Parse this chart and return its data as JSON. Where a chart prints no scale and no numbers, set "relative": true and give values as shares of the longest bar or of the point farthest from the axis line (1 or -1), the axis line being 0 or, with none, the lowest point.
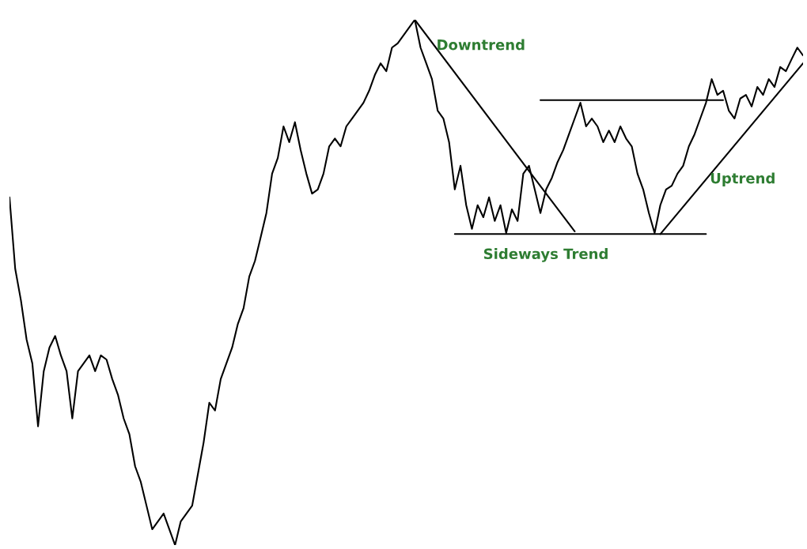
{
  "chart_data": {
    "type": "line",
    "relative": true,
    "legend": false,
    "marker": "none",
    "line_style": "solid",
    "categories": [
      null,
      null,
      null,
      null,
      null,
      null,
      null,
      null,
      null,
      null,
      null,
      null,
      null,
      null,
      null,
      null,
      null,
      null,
      null,
      null,
      null,
      null,
      null,
      null,
      null,
      null,
      null,
      null,
      null,
      null,
      null,
      null,
      null,
      null,
      null,
      null,
      null,
      null,
      null,
      null,
      null,
      null,
      null,
      null,
      null,
      null,
      null,
      null,
      null,
      null,
      null,
      null,
      null,
      null,
      null,
      null,
      null,
      null,
      null,
      null,
      null,
      null,
      null,
      null,
      null,
      null,
      null,
      null,
      null,
      null,
      null,
      null,
      null,
      null,
      null,
      null,
      null,
      null,
      null,
      null,
      null,
      null,
      null,
      null,
      null,
      null,
      null,
      null,
      null,
      null,
      null,
      null,
      null,
      null,
      null,
      null,
      null,
      null,
      null,
      null,
      null,
      null,
      null,
      null,
      null,
      null,
      null,
      null,
      null,
      null,
      null,
      null,
      null,
      null,
      null,
      null,
      null,
      null,
      null,
      null,
      null,
      null,
      null,
      null,
      null,
      null,
      null,
      null,
      null,
      null,
      null,
      null,
      null,
      null,
      null,
      null,
      null,
      null,
      null,
      null
    ],
    "series": [
      {
        "color": "#000000",
        "values": [
          0.662,
          0.526,
          0.466,
          0.391,
          0.346,
          0.226,
          0.331,
          0.376,
          0.398,
          0.361,
          0.331,
          0.241,
          0.331,
          0.346,
          0.361,
          0.331,
          0.361,
          0.353,
          0.316,
          0.286,
          0.241,
          0.211,
          0.15,
          0.12,
          0.075,
          0.03,
          0.045,
          0.06,
          0.03,
          0,
          0.045,
          0.06,
          0.075,
          0.135,
          0.195,
          0.271,
          0.256,
          0.316,
          0.346,
          0.376,
          0.421,
          0.451,
          0.511,
          0.541,
          0.586,
          0.632,
          0.707,
          0.737,
          0.797,
          0.767,
          0.805,
          0.752,
          0.707,
          0.669,
          0.677,
          0.707,
          0.759,
          0.774,
          0.759,
          0.797,
          0.812,
          0.827,
          0.842,
          0.865,
          0.895,
          0.917,
          0.902,
          0.947,
          0.955,
          0.97,
          0.985,
          1,
          0.947,
          0.917,
          0.887,
          0.827,
          0.812,
          0.767,
          0.677,
          0.722,
          0.647,
          0.602,
          0.647,
          0.624,
          0.662,
          0.617,
          0.647,
          0.594,
          0.639,
          0.617,
          0.707,
          0.722,
          0.677,
          0.632,
          0.677,
          0.699,
          0.729,
          0.752,
          0.782,
          0.812,
          0.842,
          0.797,
          0.812,
          0.797,
          0.767,
          0.789,
          0.767,
          0.797,
          0.774,
          0.759,
          0.707,
          0.677,
          0.632,
          0.594,
          0.647,
          0.677,
          0.684,
          0.707,
          0.722,
          0.759,
          0.782,
          0.812,
          0.842,
          0.887,
          0.857,
          0.865,
          0.827,
          0.812,
          0.85,
          0.857,
          0.835,
          0.872,
          0.857,
          0.887,
          0.872,
          0.91,
          0.902,
          0.925,
          0.947,
          0.932
        ]
      },
      {
        "color": "#000000",
        "values": [
          null,
          null,
          null,
          null,
          null,
          null,
          null,
          null,
          null,
          null,
          null,
          null,
          null,
          null,
          null,
          null,
          null,
          null,
          null,
          null,
          null,
          null,
          null,
          null,
          null,
          null,
          null,
          null,
          null,
          null,
          null,
          null,
          null,
          null,
          null,
          null,
          null,
          null,
          null,
          null,
          null,
          null,
          null,
          null,
          null,
          null,
          null,
          null,
          null,
          null,
          null,
          null,
          null,
          null,
          null,
          null,
          null,
          null,
          null,
          null,
          null,
          null,
          null,
          null,
          null,
          null,
          null,
          null,
          null,
          null,
          null,
          1,
          null,
          null,
          null,
          null,
          null,
          null,
          null,
          null,
          null,
          null,
          null,
          null,
          null,
          null,
          null,
          null,
          null,
          null,
          null,
          null,
          null,
          null,
          null,
          null,
          null,
          null,
          null,
          0.597,
          null,
          null,
          null,
          null,
          null,
          null,
          null,
          null,
          null,
          null,
          null,
          null,
          null,
          null,
          null,
          null,
          null,
          null,
          null,
          null,
          null,
          null,
          null,
          null,
          null,
          null,
          null,
          null,
          null,
          null,
          null,
          null,
          null,
          null,
          null,
          null,
          null,
          null,
          null,
          null
        ]
      },
      {
        "color": "#000000",
        "values": [
          null,
          null,
          null,
          null,
          null,
          null,
          null,
          null,
          null,
          null,
          null,
          null,
          null,
          null,
          null,
          null,
          null,
          null,
          null,
          null,
          null,
          null,
          null,
          null,
          null,
          null,
          null,
          null,
          null,
          null,
          null,
          null,
          null,
          null,
          null,
          null,
          null,
          null,
          null,
          null,
          null,
          null,
          null,
          null,
          null,
          null,
          null,
          null,
          null,
          null,
          null,
          null,
          null,
          null,
          null,
          null,
          null,
          null,
          null,
          null,
          null,
          null,
          null,
          null,
          null,
          null,
          null,
          null,
          null,
          null,
          null,
          null,
          null,
          null,
          null,
          null,
          null,
          null,
          0.592,
          null,
          null,
          null,
          null,
          null,
          null,
          null,
          null,
          null,
          null,
          null,
          null,
          null,
          null,
          null,
          null,
          null,
          null,
          null,
          null,
          null,
          null,
          null,
          null,
          null,
          null,
          null,
          null,
          null,
          null,
          null,
          null,
          null,
          null,
          null,
          null,
          null,
          null,
          null,
          null,
          null,
          null,
          null,
          0.592,
          null,
          null,
          null,
          null,
          null,
          null,
          null,
          null,
          null,
          null,
          null,
          null,
          null,
          null,
          null,
          null,
          null
        ]
      },
      {
        "color": "#000000",
        "values": [
          null,
          null,
          null,
          null,
          null,
          null,
          null,
          null,
          null,
          null,
          null,
          null,
          null,
          null,
          null,
          null,
          null,
          null,
          null,
          null,
          null,
          null,
          null,
          null,
          null,
          null,
          null,
          null,
          null,
          null,
          null,
          null,
          null,
          null,
          null,
          null,
          null,
          null,
          null,
          null,
          null,
          null,
          null,
          null,
          null,
          null,
          null,
          null,
          null,
          null,
          null,
          null,
          null,
          null,
          null,
          null,
          null,
          null,
          null,
          null,
          null,
          null,
          null,
          null,
          null,
          null,
          null,
          null,
          null,
          null,
          null,
          null,
          null,
          null,
          null,
          null,
          null,
          null,
          null,
          null,
          null,
          null,
          null,
          null,
          null,
          null,
          null,
          null,
          null,
          null,
          null,
          null,
          null,
          0.847,
          null,
          null,
          null,
          null,
          null,
          null,
          null,
          null,
          null,
          null,
          null,
          null,
          null,
          null,
          null,
          null,
          null,
          null,
          null,
          null,
          null,
          null,
          null,
          null,
          null,
          null,
          null,
          null,
          null,
          null,
          null,
          0.847,
          null,
          null,
          null,
          null,
          null,
          null,
          null,
          null,
          null,
          null,
          null,
          null,
          null,
          null
        ]
      },
      {
        "color": "#000000",
        "values": [
          null,
          null,
          null,
          null,
          null,
          null,
          null,
          null,
          null,
          null,
          null,
          null,
          null,
          null,
          null,
          null,
          null,
          null,
          null,
          null,
          null,
          null,
          null,
          null,
          null,
          null,
          null,
          null,
          null,
          null,
          null,
          null,
          null,
          null,
          null,
          null,
          null,
          null,
          null,
          null,
          null,
          null,
          null,
          null,
          null,
          null,
          null,
          null,
          null,
          null,
          null,
          null,
          null,
          null,
          null,
          null,
          null,
          null,
          null,
          null,
          null,
          null,
          null,
          null,
          null,
          null,
          null,
          null,
          null,
          null,
          null,
          null,
          null,
          null,
          null,
          null,
          null,
          null,
          null,
          null,
          null,
          null,
          null,
          null,
          null,
          null,
          null,
          null,
          null,
          null,
          null,
          null,
          null,
          null,
          null,
          null,
          null,
          null,
          null,
          null,
          null,
          null,
          null,
          null,
          null,
          null,
          null,
          null,
          null,
          null,
          null,
          null,
          null,
          null,
          0.592,
          null,
          null,
          null,
          null,
          null,
          null,
          null,
          null,
          null,
          null,
          null,
          null,
          null,
          null,
          null,
          null,
          null,
          null,
          null,
          null,
          null,
          null,
          null,
          null,
          0.917
        ]
      }
    ],
    "annotations": [
      "Downtrend",
      "Sideways Trend",
      "Uptrend"
    ]
  }
}
